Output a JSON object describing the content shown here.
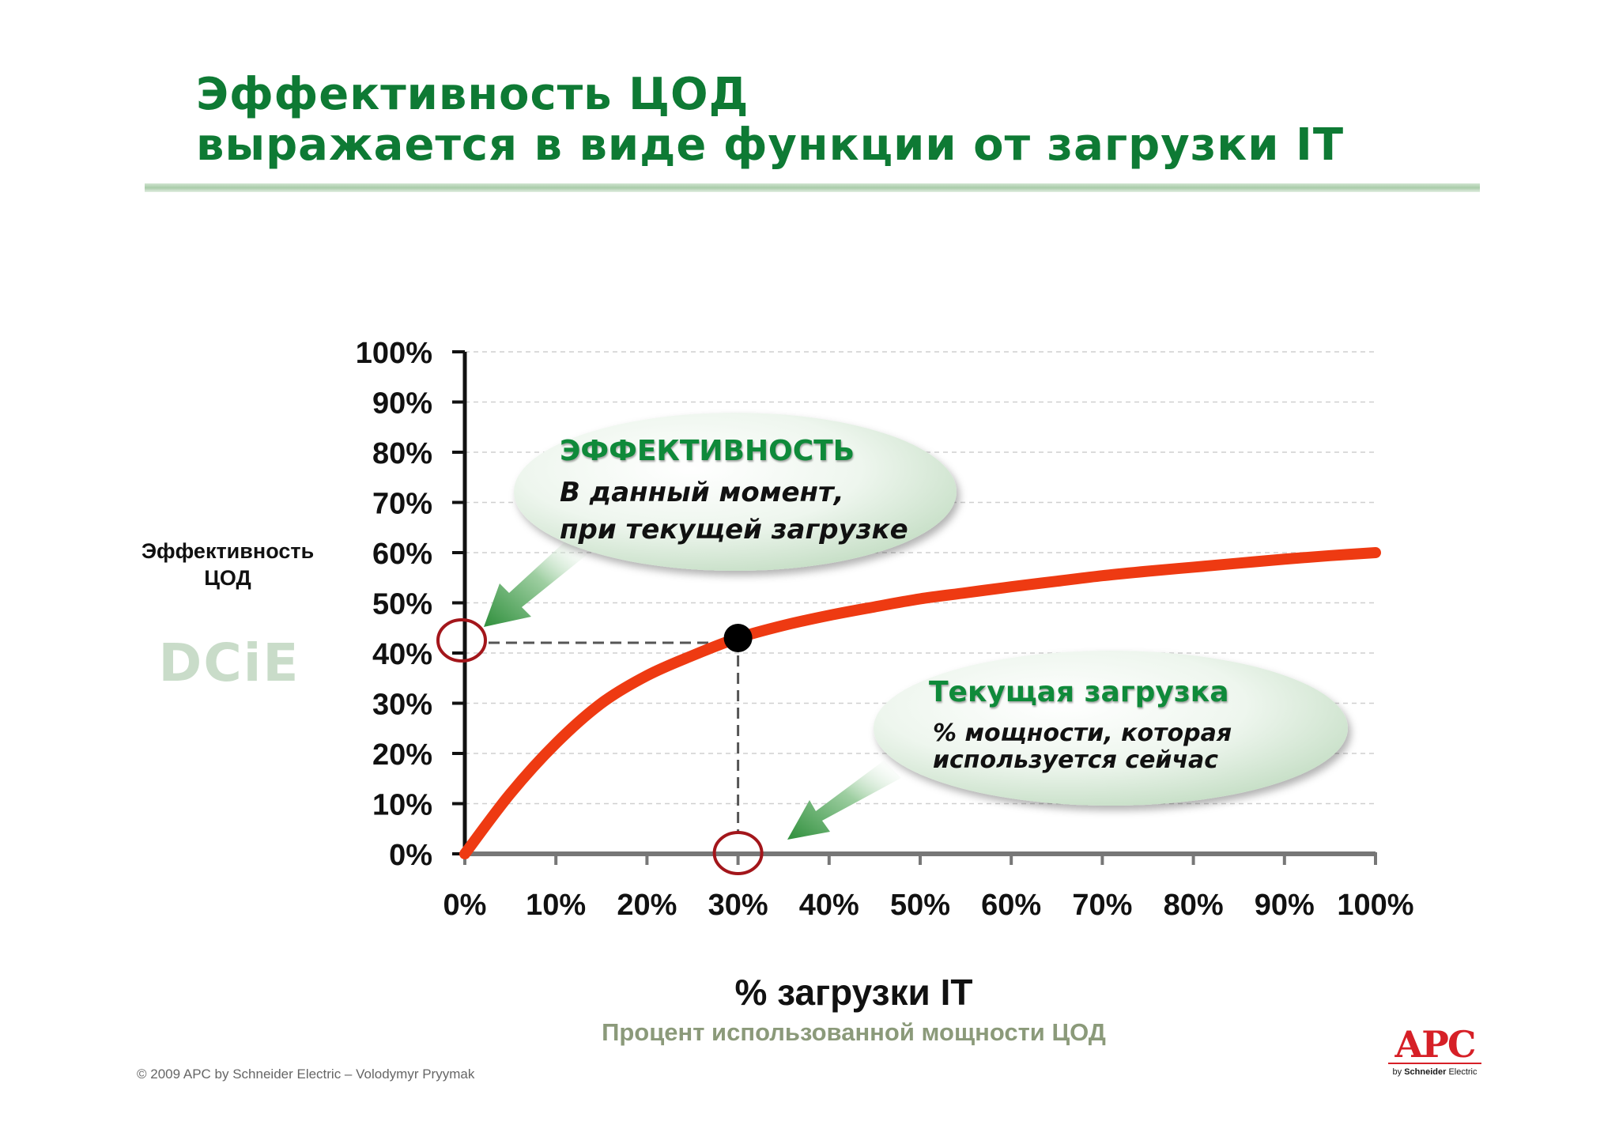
{
  "title": {
    "line1": "Эффективность ЦОД",
    "line2": "выражается в виде функции от загрузки IT"
  },
  "y_axis_label": {
    "line1": "Эффективность",
    "line2": "ЦОД"
  },
  "dcie_label": "DCiE",
  "bubble_efficiency": {
    "title": "ЭФФЕКТИВНОСТЬ",
    "line1": "В данный момент,",
    "line2": "при текущей загрузке"
  },
  "bubble_load": {
    "title": "Текущая загрузка",
    "line1": "% мощности, которая",
    "line2": "используется сейчас"
  },
  "x_axis_title": "% загрузки IT",
  "x_axis_subtitle": "Процент использованной мощности ЦОД",
  "copyright": "© 2009 APC by Schneider Electric – Volodymyr Pryymak",
  "logo": {
    "main": "APC",
    "by": "by",
    "brand": "Schneider",
    "suffix": "Electric"
  },
  "colors": {
    "title": "#0e7a34",
    "curve": "#ee3a12",
    "marker_circle": "#a3161b",
    "arrow": "#3f9a4b",
    "logo": "#d62027"
  },
  "chart_data": {
    "type": "line",
    "x": [
      0,
      5,
      10,
      15,
      20,
      25,
      30,
      35,
      40,
      45,
      50,
      55,
      60,
      65,
      70,
      75,
      80,
      85,
      90,
      95,
      100
    ],
    "y_ticks": [
      "0%",
      "10%",
      "20%",
      "30%",
      "40%",
      "50%",
      "60%",
      "70%",
      "80%",
      "90%",
      "100%"
    ],
    "x_ticks": [
      "0%",
      "10%",
      "20%",
      "30%",
      "40%",
      "50%",
      "60%",
      "70%",
      "80%",
      "90%",
      "100%"
    ],
    "series": [
      {
        "values": [
          0,
          12,
          22,
          30,
          35.5,
          39.5,
          43,
          45.5,
          47.5,
          49.2,
          50.8,
          52,
          53.2,
          54.3,
          55.4,
          56.3,
          57.1,
          57.9,
          58.7,
          59.4,
          60
        ]
      }
    ],
    "highlight_point": {
      "x": 30,
      "y": 43
    },
    "xlim": [
      0,
      100
    ],
    "ylim": [
      0,
      100
    ],
    "grid": true,
    "xlabel": "% загрузки IT",
    "ylabel": "Эффективность ЦОД"
  }
}
